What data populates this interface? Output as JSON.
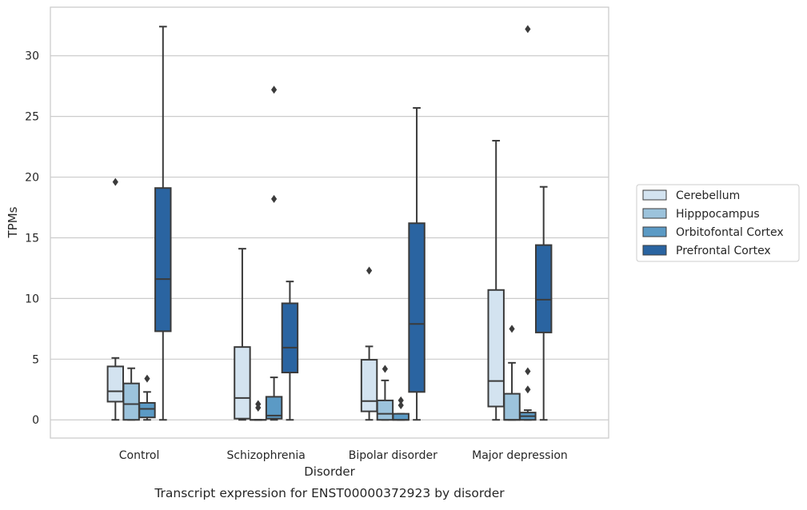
{
  "chart_data": {
    "type": "box",
    "title": "Transcript expression for ENST00000372923 by disorder",
    "xlabel": "Disorder",
    "ylabel": "TPMs",
    "ylim": [
      -1.5,
      34.0
    ],
    "yticks": [
      0,
      5,
      10,
      15,
      20,
      25,
      30
    ],
    "grid": true,
    "legend_position": "right",
    "categories": [
      "Control",
      "Schizophrenia",
      "Bipolar disorder",
      "Major depression"
    ],
    "series": [
      {
        "name": "Cerebellum",
        "color": "#d3e3f0",
        "boxes": [
          {
            "whislo": 0.0,
            "q1": 1.5,
            "med": 2.35,
            "q3": 4.4,
            "whishi": 5.1,
            "fliers": [
              19.6
            ]
          },
          {
            "whislo": 0.0,
            "q1": 0.1,
            "med": 1.8,
            "q3": 6.0,
            "whishi": 14.1,
            "fliers": []
          },
          {
            "whislo": 0.0,
            "q1": 0.7,
            "med": 1.55,
            "q3": 4.95,
            "whishi": 6.05,
            "fliers": [
              12.3
            ]
          },
          {
            "whislo": 0.0,
            "q1": 1.1,
            "med": 3.2,
            "q3": 10.7,
            "whishi": 23.0,
            "fliers": []
          }
        ]
      },
      {
        "name": "Hipppocampus",
        "color": "#9cc3dc",
        "boxes": [
          {
            "whislo": 0.0,
            "q1": 0.0,
            "med": 1.3,
            "q3": 3.0,
            "whishi": 4.25,
            "fliers": []
          },
          {
            "whislo": 0.0,
            "q1": 0.0,
            "med": 0.0,
            "q3": 0.0,
            "whishi": 0.0,
            "fliers": [
              1.3,
              1.0
            ]
          },
          {
            "whislo": 0.0,
            "q1": 0.0,
            "med": 0.5,
            "q3": 1.6,
            "whishi": 3.25,
            "fliers": [
              4.2
            ]
          },
          {
            "whislo": 0.0,
            "q1": 0.0,
            "med": 0.0,
            "q3": 2.15,
            "whishi": 4.7,
            "fliers": [
              7.5
            ]
          }
        ]
      },
      {
        "name": "Orbitofontal Cortex",
        "color": "#5b9ac5",
        "boxes": [
          {
            "whislo": 0.0,
            "q1": 0.2,
            "med": 0.9,
            "q3": 1.4,
            "whishi": 2.3,
            "fliers": [
              3.4
            ]
          },
          {
            "whislo": 0.0,
            "q1": 0.1,
            "med": 0.35,
            "q3": 1.9,
            "whishi": 3.5,
            "fliers": [
              18.2,
              27.2
            ]
          },
          {
            "whislo": 0.0,
            "q1": 0.0,
            "med": 0.0,
            "q3": 0.5,
            "whishi": 0.5,
            "fliers": [
              1.2,
              1.6
            ]
          },
          {
            "whislo": 0.0,
            "q1": 0.0,
            "med": 0.3,
            "q3": 0.6,
            "whishi": 0.8,
            "fliers": [
              2.5,
              4.0,
              32.2
            ]
          }
        ]
      },
      {
        "name": "Prefrontal Cortex",
        "color": "#2a64a1",
        "boxes": [
          {
            "whislo": 0.0,
            "q1": 7.3,
            "med": 11.6,
            "q3": 19.1,
            "whishi": 32.4,
            "fliers": []
          },
          {
            "whislo": 0.0,
            "q1": 3.9,
            "med": 5.95,
            "q3": 9.6,
            "whishi": 11.4,
            "fliers": []
          },
          {
            "whislo": 0.0,
            "q1": 2.3,
            "med": 7.9,
            "q3": 16.2,
            "whishi": 25.7,
            "fliers": []
          },
          {
            "whislo": 0.0,
            "q1": 7.2,
            "med": 9.9,
            "q3": 14.4,
            "whishi": 19.2,
            "fliers": []
          }
        ]
      }
    ]
  }
}
